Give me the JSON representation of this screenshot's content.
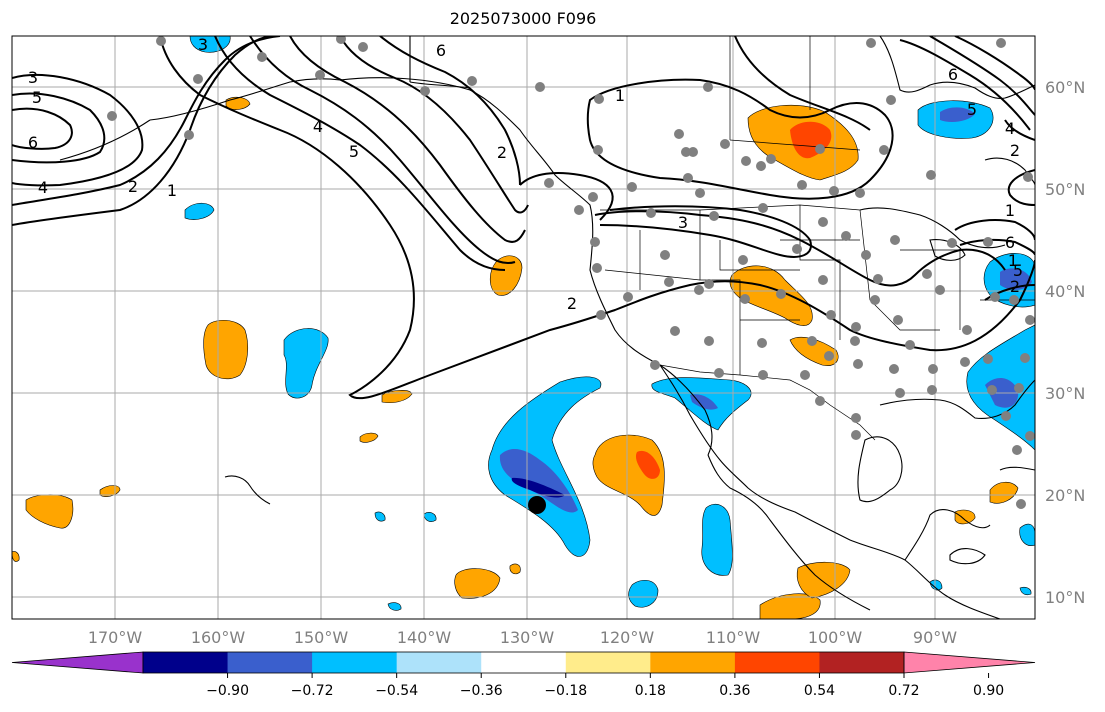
{
  "title": "2025073000 F096",
  "map": {
    "type": "weather_forecast_map",
    "region": "Eastern Pacific / North America",
    "gridlines": true,
    "lon_labels": [
      "170°W",
      "160°W",
      "150°W",
      "140°W",
      "130°W",
      "120°W",
      "110°W",
      "100°W",
      "90°W"
    ],
    "lat_labels": [
      "60°N",
      "50°N",
      "40°N",
      "30°N",
      "20°N",
      "10°N"
    ],
    "contour_labels": [
      "3",
      "5",
      "6",
      "4",
      "2",
      "1",
      "3",
      "5",
      "6",
      "4",
      "2",
      "1",
      "2",
      "3",
      "6",
      "5",
      "4",
      "2",
      "1",
      "1",
      "5",
      "2",
      "6"
    ],
    "marker": "storm-center-marker"
  },
  "colorbar": {
    "ticks": [
      "−0.90",
      "−0.72",
      "−0.54",
      "−0.36",
      "−0.18",
      "0.18",
      "0.36",
      "0.54",
      "0.72",
      "0.90"
    ],
    "colors": [
      "#9932CC",
      "#00008B",
      "#3A5FCD",
      "#00BFFF",
      "#ADE2FA",
      "#FFFFFF",
      "#FFEC8B",
      "#FFA500",
      "#FF4500",
      "#B22222",
      "#FF83AA"
    ]
  }
}
